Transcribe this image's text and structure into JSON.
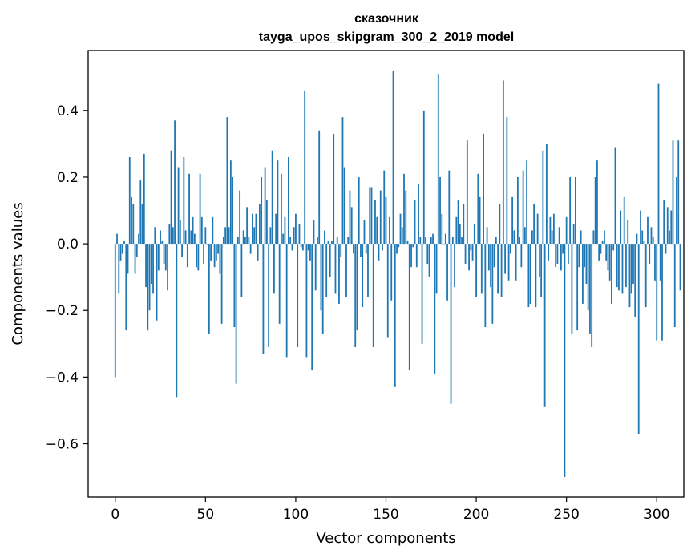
{
  "chart_data": {
    "type": "bar",
    "title": "сказочник",
    "subtitle": "tayga_upos_skipgram_300_2_2019 model",
    "xlabel": "Vector components",
    "ylabel": "Components values",
    "xlim": [
      -15,
      315
    ],
    "ylim": [
      -0.76,
      0.58
    ],
    "xticks": [
      0,
      50,
      100,
      150,
      200,
      250,
      300
    ],
    "yticks": [
      -0.6,
      -0.4,
      -0.2,
      0.0,
      0.2,
      0.4
    ],
    "ytick_labels": [
      "−0.6",
      "−0.4",
      "−0.2",
      "0.0",
      "0.2",
      "0.4"
    ],
    "bar_color": "#1f77b4",
    "grid": false,
    "values": [
      -0.4,
      0.03,
      -0.15,
      -0.05,
      -0.03,
      0.01,
      -0.26,
      -0.09,
      0.26,
      0.14,
      0.12,
      -0.09,
      -0.04,
      0.03,
      0.19,
      0.12,
      0.27,
      -0.13,
      -0.26,
      -0.2,
      -0.12,
      -0.15,
      0.05,
      -0.23,
      -0.08,
      0.04,
      0.01,
      -0.06,
      -0.08,
      -0.14,
      0.06,
      0.28,
      0.05,
      0.37,
      -0.46,
      0.23,
      0.07,
      -0.04,
      0.26,
      0.04,
      -0.07,
      0.21,
      0.04,
      0.08,
      0.03,
      -0.07,
      -0.08,
      0.21,
      0.08,
      -0.06,
      0.05,
      0.0,
      -0.27,
      -0.05,
      0.08,
      -0.07,
      -0.05,
      -0.03,
      -0.09,
      -0.24,
      0.02,
      0.05,
      0.38,
      0.05,
      0.25,
      0.2,
      -0.25,
      -0.42,
      0.02,
      0.16,
      -0.16,
      0.04,
      0.02,
      0.11,
      0.02,
      -0.03,
      0.09,
      0.05,
      0.09,
      -0.05,
      0.12,
      0.2,
      -0.33,
      0.23,
      0.13,
      -0.31,
      0.05,
      0.28,
      -0.15,
      0.09,
      0.25,
      -0.24,
      0.21,
      0.03,
      0.08,
      -0.34,
      0.26,
      0.02,
      -0.02,
      0.05,
      0.09,
      -0.31,
      0.06,
      -0.01,
      -0.02,
      0.46,
      -0.34,
      -0.02,
      -0.05,
      -0.38,
      0.07,
      -0.14,
      0.02,
      0.34,
      -0.2,
      -0.27,
      0.04,
      -0.16,
      0.01,
      -0.1,
      0.01,
      0.33,
      -0.15,
      0.02,
      -0.18,
      -0.04,
      0.38,
      0.23,
      -0.16,
      0.02,
      0.16,
      0.11,
      -0.03,
      -0.31,
      -0.26,
      0.2,
      -0.04,
      -0.19,
      0.07,
      -0.03,
      -0.16,
      0.17,
      0.17,
      -0.31,
      0.13,
      0.08,
      -0.05,
      0.16,
      -0.02,
      0.22,
      0.14,
      -0.28,
      0.08,
      -0.17,
      0.52,
      -0.43,
      -0.03,
      -0.01,
      0.09,
      0.05,
      0.21,
      0.16,
      0.01,
      -0.38,
      -0.07,
      -0.01,
      0.13,
      -0.07,
      0.18,
      0.02,
      -0.3,
      0.4,
      0.02,
      -0.06,
      -0.1,
      0.02,
      0.03,
      -0.39,
      -0.15,
      0.51,
      0.2,
      0.09,
      0.0,
      0.03,
      -0.17,
      0.22,
      -0.48,
      0.02,
      -0.13,
      0.08,
      0.13,
      0.06,
      0.02,
      0.12,
      -0.06,
      0.31,
      -0.08,
      -0.02,
      -0.05,
      0.06,
      -0.16,
      0.21,
      0.14,
      -0.15,
      0.33,
      -0.25,
      0.05,
      -0.08,
      -0.13,
      -0.24,
      -0.07,
      0.02,
      -0.15,
      0.12,
      -0.16,
      0.49,
      -0.09,
      0.38,
      -0.11,
      -0.03,
      0.14,
      0.04,
      -0.11,
      0.2,
      0.02,
      -0.07,
      0.22,
      0.05,
      0.25,
      -0.19,
      -0.18,
      0.04,
      0.12,
      -0.19,
      0.09,
      -0.1,
      -0.16,
      0.28,
      -0.49,
      0.3,
      -0.05,
      0.08,
      0.04,
      0.09,
      -0.07,
      -0.06,
      0.05,
      -0.08,
      -0.03,
      -0.7,
      0.08,
      -0.06,
      0.2,
      -0.27,
      0.06,
      0.2,
      -0.26,
      -0.07,
      0.04,
      -0.18,
      -0.07,
      -0.12,
      -0.2,
      -0.27,
      -0.31,
      0.04,
      0.2,
      0.25,
      -0.05,
      -0.03,
      0.01,
      0.04,
      -0.05,
      -0.08,
      -0.11,
      -0.18,
      -0.02,
      0.29,
      -0.13,
      -0.14,
      0.1,
      -0.15,
      0.14,
      -0.13,
      0.07,
      -0.19,
      -0.15,
      -0.12,
      -0.22,
      0.03,
      -0.57,
      0.1,
      0.04,
      0.01,
      -0.19,
      0.08,
      -0.06,
      0.05,
      0.02,
      -0.11,
      -0.29,
      0.48,
      -0.11,
      -0.29,
      0.13,
      -0.03,
      0.11,
      0.04,
      0.1,
      0.31,
      -0.25,
      0.2,
      0.31,
      -0.14
    ]
  }
}
